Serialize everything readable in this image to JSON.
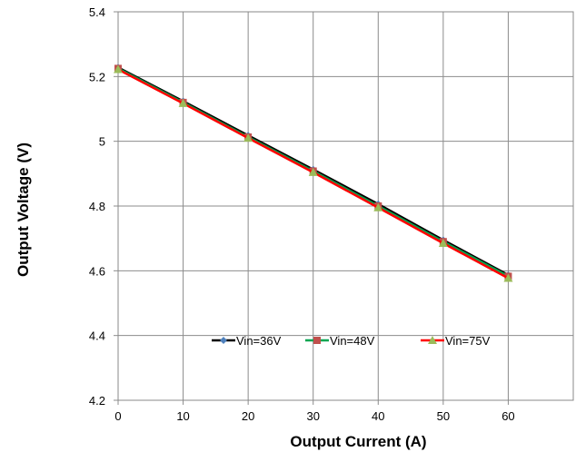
{
  "chart_data": {
    "type": "line",
    "title": "",
    "xlabel": "Output Current (A)",
    "ylabel": "Output Voltage (V)",
    "xlim": [
      0,
      70
    ],
    "ylim": [
      4.2,
      5.4
    ],
    "xticks": [
      "0",
      "10",
      "20",
      "30",
      "40",
      "50",
      "60"
    ],
    "yticks": [
      "4.2",
      "4.4",
      "4.6",
      "4.8",
      "5",
      "5.2",
      "5.4"
    ],
    "grid": true,
    "legend_position": "inside-bottom-center",
    "x": [
      0,
      10,
      20,
      30,
      40,
      50,
      60
    ],
    "series": [
      {
        "name": "Vin=36V",
        "color": "#000000",
        "marker": "diamond",
        "marker_color": "#4f81bd",
        "values": [
          5.228,
          5.124,
          5.018,
          4.913,
          4.806,
          4.695,
          4.587
        ]
      },
      {
        "name": "Vin=48V",
        "color": "#00a651",
        "marker": "square",
        "marker_color": "#c0504d",
        "values": [
          5.225,
          5.12,
          5.013,
          4.908,
          4.8,
          4.69,
          4.583
        ]
      },
      {
        "name": "Vin=75V",
        "color": "#ff0000",
        "marker": "triangle",
        "marker_color": "#9bbb59",
        "values": [
          5.222,
          5.117,
          5.01,
          4.904,
          4.795,
          4.685,
          4.577
        ]
      }
    ]
  }
}
